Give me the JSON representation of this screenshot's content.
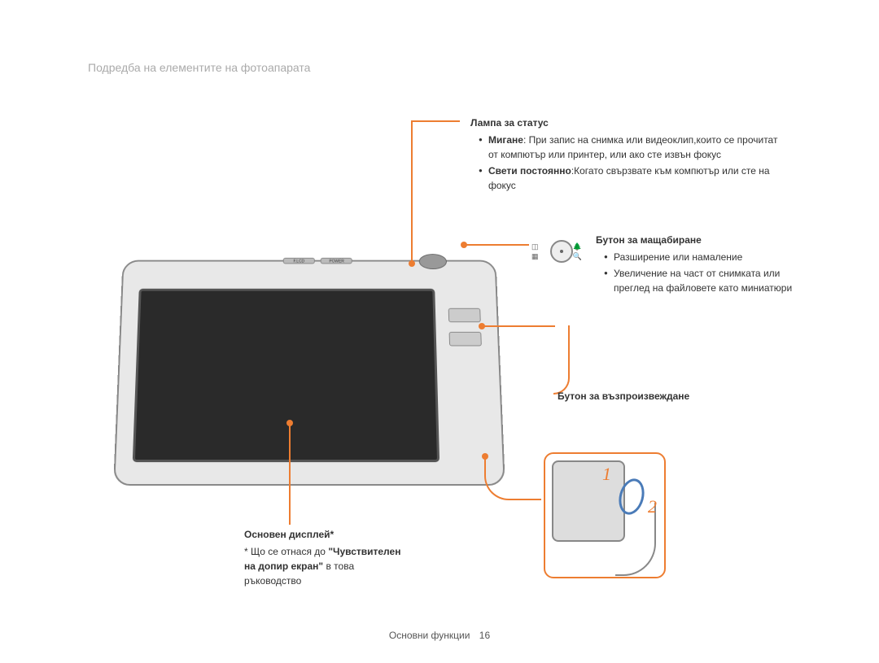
{
  "page_title": "Подредба на елементите на фотоапарата",
  "status_lamp": {
    "heading": "Лампа за статус",
    "bullet1_bold": "Мигане",
    "bullet1_text": ": При запис на снимка или видеоклип,които се прочитат от компютър или принтер, или ако сте извън фокус",
    "bullet2_bold": "Свети постоянно",
    "bullet2_text": ":Когато свързвате към компютър или сте на фокус"
  },
  "zoom_button": {
    "heading": "Бутон за мащабиране",
    "bullet1": "Разширение или намаление",
    "bullet2": "Увеличение на част от снимката или преглед на файловете като миниатюри"
  },
  "playback_button": {
    "heading": "Бутон за възпроизвеждане"
  },
  "main_display": {
    "heading": "Основен дисплей*",
    "note_prefix": "* Що се отнася до",
    "note_bold": "\"Чувствителен на допир екран\"",
    "note_suffix": " в това ръководство"
  },
  "detail_numbers": {
    "one": "1",
    "two": "2"
  },
  "top_buttons": {
    "flcd": "F.LCD",
    "power": "POWER"
  },
  "zoom_icons": {
    "tl": "◫",
    "bl": "▦",
    "tr": "🌲",
    "br": "🔍"
  },
  "footer": {
    "section": "Основни функции",
    "page": "16"
  },
  "colors": {
    "accent": "#ed7d31",
    "text": "#333333",
    "muted": "#aaaaaa"
  }
}
